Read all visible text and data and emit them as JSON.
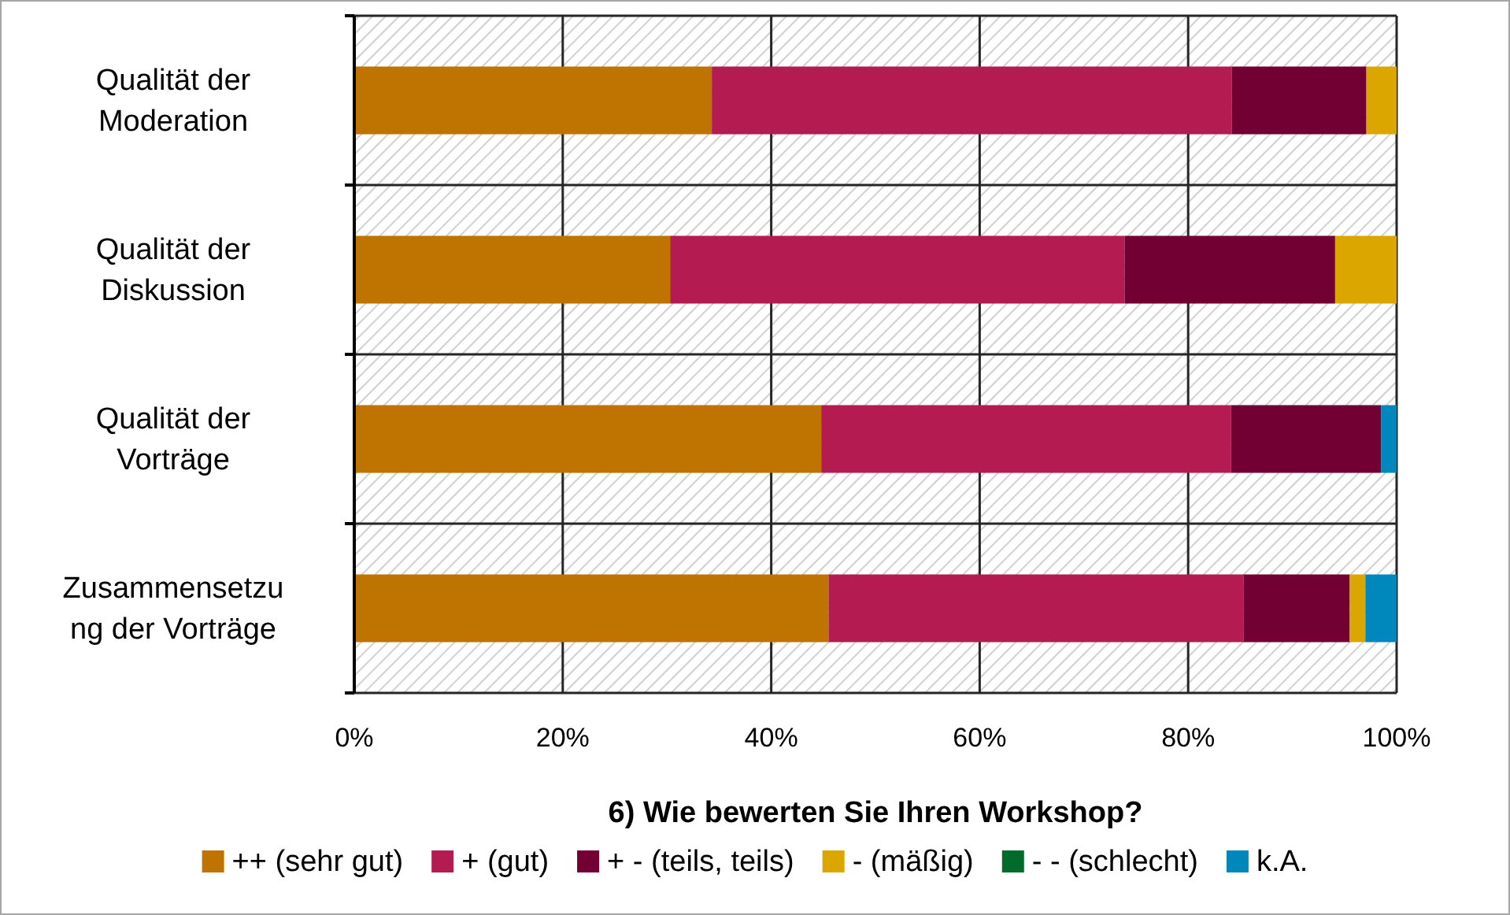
{
  "chart_data": {
    "type": "bar",
    "orientation": "horizontal",
    "stacked": true,
    "xlabel": "6) Wie bewerten Sie Ihren Workshop?",
    "categories": [
      "Qualität der\nModeration",
      "Qualität der\nDiskussion",
      "Qualität der\nVorträge",
      "Zusammensetzu\nng der Vorträge"
    ],
    "series": [
      {
        "name": "++ (sehr gut)",
        "color": "#bf7300",
        "values": [
          34.3,
          30.3,
          44.8,
          45.5
        ]
      },
      {
        "name": "+ (gut)",
        "color": "#b31b51",
        "values": [
          49.9,
          43.6,
          39.3,
          39.8
        ]
      },
      {
        "name": "+ - (teils, teils)",
        "color": "#720033",
        "values": [
          12.9,
          20.2,
          14.4,
          10.2
        ]
      },
      {
        "name": "- (mäßig)",
        "color": "#dca600",
        "values": [
          2.9,
          5.9,
          0,
          1.5
        ]
      },
      {
        "name": "- - (schlecht)",
        "color": "#006b2a",
        "values": [
          0,
          0,
          0,
          0
        ]
      },
      {
        "name": "k.A.",
        "color": "#0088bd",
        "values": [
          0,
          0,
          1.5,
          3.0
        ]
      }
    ],
    "xlim": [
      0,
      100
    ],
    "xticks": [
      {
        "value": 0,
        "label": "0%"
      },
      {
        "value": 20,
        "label": "20%"
      },
      {
        "value": 40,
        "label": "40%"
      },
      {
        "value": 60,
        "label": "60%"
      },
      {
        "value": 80,
        "label": "80%"
      },
      {
        "value": 100,
        "label": "100%"
      }
    ],
    "grid": true,
    "legend": "bottom"
  }
}
